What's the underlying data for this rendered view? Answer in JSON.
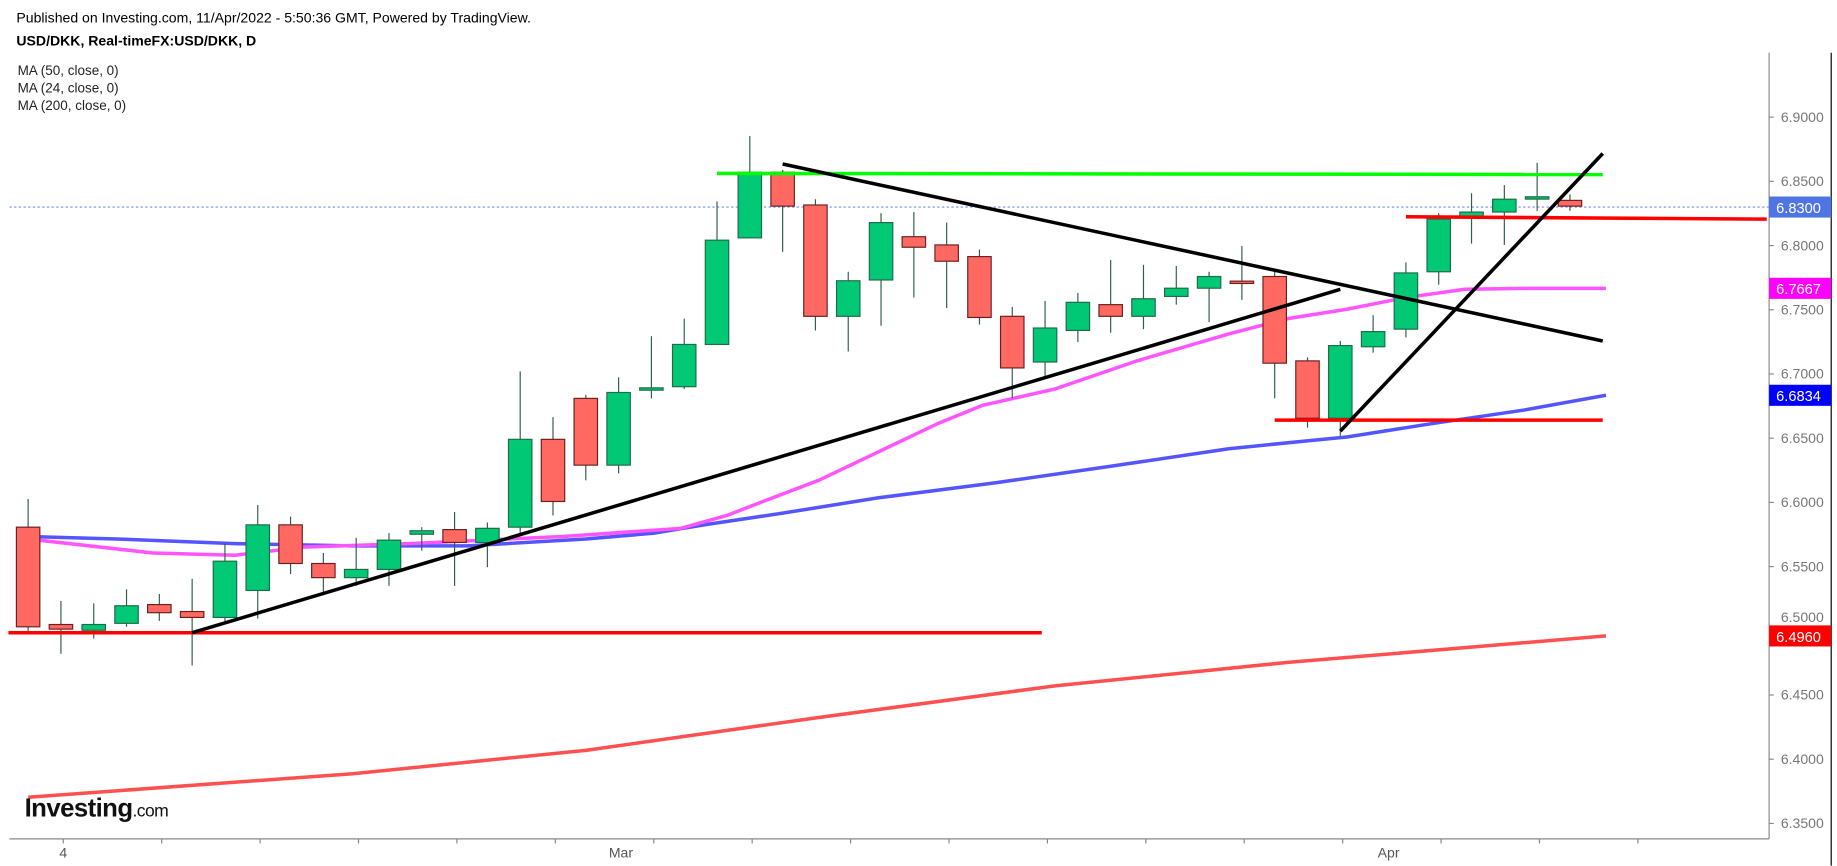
{
  "header": {
    "published": "Published on Investing.com, 11/Apr/2022 - 5:50:36 GMT, Powered by TradingView.",
    "title": "USD/DKK, Real-timeFX:USD/DKK, D"
  },
  "legend": [
    "MA (50, close, 0)",
    "MA (24, close, 0)",
    "MA (200, close, 0)"
  ],
  "logo": {
    "main": "Investing",
    "suffix": ".com"
  },
  "colors": {
    "up": "#00c875",
    "down": "#ff6961",
    "ma50": "#5555ff",
    "ma24": "#ff55ff",
    "ma200": "#ff5050",
    "last_price": "#4f74e3"
  },
  "chart_data": {
    "type": "candlestick",
    "symbol": "USD/DKK",
    "ylim": [
      6.33,
      6.95
    ],
    "y_ticks": [
      "6.9000",
      "6.8500",
      "6.8000",
      "6.7500",
      "6.7000",
      "6.6500",
      "6.6000",
      "6.5500",
      "6.5000",
      "6.4500",
      "6.4000",
      "6.3500"
    ],
    "x_labels": [
      {
        "index": 1,
        "label": "4"
      },
      {
        "index": 18,
        "label": "Mar"
      },
      {
        "index": 41.4,
        "label": "Apr"
      }
    ],
    "candles": [
      [
        6.5807,
        6.6026,
        6.4985,
        6.5031
      ],
      [
        6.5049,
        6.5232,
        6.4821,
        6.5013
      ],
      [
        6.5004,
        6.5214,
        6.494,
        6.5049
      ],
      [
        6.5058,
        6.5323,
        6.5031,
        6.5195
      ],
      [
        6.5204,
        6.5287,
        6.5077,
        6.5141
      ],
      [
        6.515,
        6.5405,
        6.473,
        6.5104
      ],
      [
        6.5104,
        6.5679,
        6.5058,
        6.5542
      ],
      [
        6.5314,
        6.598,
        6.5095,
        6.5825
      ],
      [
        6.5825,
        6.5889,
        6.5442,
        6.5524
      ],
      [
        6.5524,
        6.5606,
        6.5277,
        6.5414
      ],
      [
        6.5414,
        6.5724,
        6.535,
        6.5478
      ],
      [
        6.5478,
        6.5761,
        6.535,
        6.5706
      ],
      [
        6.5752,
        6.5807,
        6.5624,
        6.5779
      ],
      [
        6.5788,
        6.5925,
        6.535,
        6.5688
      ],
      [
        6.5688,
        6.5843,
        6.5496,
        6.5798
      ],
      [
        6.5807,
        6.702,
        6.5761,
        6.6491
      ],
      [
        6.6491,
        6.6664,
        6.5898,
        6.6007
      ],
      [
        6.681,
        6.6838,
        6.6172,
        6.629
      ],
      [
        6.629,
        6.6974,
        6.6226,
        6.6856
      ],
      [
        6.6875,
        6.7294,
        6.681,
        6.6892
      ],
      [
        6.6901,
        6.7431,
        6.6883,
        6.723
      ],
      [
        6.723,
        6.8343,
        6.723,
        6.8042
      ],
      [
        6.806,
        6.8854,
        6.806,
        6.8571
      ],
      [
        6.8571,
        6.8589,
        6.7951,
        6.8307
      ],
      [
        6.8316,
        6.8361,
        6.7339,
        6.7449
      ],
      [
        6.7449,
        6.7796,
        6.7175,
        6.7726
      ],
      [
        6.7732,
        6.8252,
        6.7376,
        6.8179
      ],
      [
        6.8069,
        6.8261,
        6.7595,
        6.7987
      ],
      [
        6.8005,
        6.8179,
        6.7513,
        6.7878
      ],
      [
        6.7914,
        6.7969,
        6.7385,
        6.744
      ],
      [
        6.7449,
        6.7522,
        6.681,
        6.7047
      ],
      [
        6.7093,
        6.7568,
        6.6974,
        6.7358
      ],
      [
        6.7339,
        6.7631,
        6.7248,
        6.7558
      ],
      [
        6.754,
        6.7887,
        6.7321,
        6.7449
      ],
      [
        6.7449,
        6.785,
        6.7349,
        6.7586
      ],
      [
        6.7604,
        6.7841,
        6.754,
        6.7668
      ],
      [
        6.7668,
        6.7796,
        6.7403,
        6.7759
      ],
      [
        6.7723,
        6.7996,
        6.7577,
        6.7714
      ],
      [
        6.7759,
        6.7814,
        6.681,
        6.7084
      ],
      [
        6.7102,
        6.713,
        6.6582,
        6.6655
      ],
      [
        6.6655,
        6.7257,
        6.6518,
        6.7221
      ],
      [
        6.7212,
        6.7458,
        6.7166,
        6.733
      ],
      [
        6.7349,
        6.7869,
        6.7285,
        6.7787
      ],
      [
        6.7796,
        6.8252,
        6.7695,
        6.8206
      ],
      [
        6.8215,
        6.8407,
        6.8015,
        6.8261
      ],
      [
        6.8261,
        6.8471,
        6.8005,
        6.8361
      ],
      [
        6.837,
        6.8644,
        6.827,
        6.838
      ],
      [
        6.8352,
        6.8398,
        6.827,
        6.8307
      ]
    ],
    "series": [
      {
        "name": "MA (50, close, 0)",
        "color": "#5555ff",
        "last": "6.6834",
        "badge": "#0000ff",
        "points": [
          [
            0,
            6.5734
          ],
          [
            2.7,
            6.5715
          ],
          [
            6.3,
            6.5679
          ],
          [
            9.9,
            6.5661
          ],
          [
            13.4,
            6.5661
          ],
          [
            17,
            6.5715
          ],
          [
            19.1,
            6.5761
          ],
          [
            20.6,
            6.5825
          ],
          [
            23,
            6.5916
          ],
          [
            25.9,
            6.6035
          ],
          [
            29.5,
            6.6153
          ],
          [
            33,
            6.6281
          ],
          [
            36.6,
            6.6418
          ],
          [
            39.1,
            6.6482
          ],
          [
            40.2,
            6.6509
          ],
          [
            42.7,
            6.661
          ],
          [
            45.6,
            6.6719
          ],
          [
            48.1,
            6.6834
          ]
        ]
      },
      {
        "name": "MA (24, close, 0)",
        "color": "#ff55ff",
        "last": "6.7667",
        "badge": "#ff00ff",
        "points": [
          [
            0,
            6.5715
          ],
          [
            3.8,
            6.5606
          ],
          [
            6.3,
            6.5588
          ],
          [
            8.4,
            6.5652
          ],
          [
            11.6,
            6.5679
          ],
          [
            16.3,
            6.5734
          ],
          [
            19.9,
            6.5798
          ],
          [
            21.3,
            6.5898
          ],
          [
            22.4,
            6.6007
          ],
          [
            24.1,
            6.6172
          ],
          [
            25.9,
            6.6391
          ],
          [
            27.7,
            6.661
          ],
          [
            29.1,
            6.6756
          ],
          [
            31.3,
            6.6883
          ],
          [
            33.8,
            6.7102
          ],
          [
            36.6,
            6.7312
          ],
          [
            38.4,
            6.7431
          ],
          [
            40.2,
            6.7504
          ],
          [
            42,
            6.7595
          ],
          [
            43.8,
            6.766
          ],
          [
            45.6,
            6.7667
          ],
          [
            48.1,
            6.7667
          ]
        ]
      },
      {
        "name": "MA (200, close, 0)",
        "color": "#ff5050",
        "last": "6.4960",
        "badge": "#ff0000",
        "points": [
          [
            0,
            6.3704
          ],
          [
            9.9,
            6.3887
          ],
          [
            17,
            6.4069
          ],
          [
            24.1,
            6.4325
          ],
          [
            31.3,
            6.4571
          ],
          [
            38.4,
            6.4754
          ],
          [
            48.1,
            6.496
          ]
        ]
      }
    ],
    "last_price": "6.8300",
    "drawings": [
      {
        "name": "support-line",
        "color": "#ff0000",
        "from": [
          -0.6,
          6.4985
        ],
        "to": [
          30.9,
          6.4985
        ]
      },
      {
        "name": "resistance-line-green",
        "color": "#00ff00",
        "from": [
          21,
          6.8562
        ],
        "to": [
          48,
          6.8553
        ]
      },
      {
        "name": "resistance-line-red",
        "color": "#ff0000",
        "from": [
          42,
          6.8224
        ],
        "to": [
          53,
          6.8206
        ]
      },
      {
        "name": "support-line-lower",
        "color": "#ff0000",
        "from": [
          38,
          6.6641
        ],
        "to": [
          48,
          6.6641
        ]
      },
      {
        "name": "rising-trendline",
        "color": "#000000",
        "from": [
          5,
          6.4985
        ],
        "to": [
          40,
          6.7659
        ]
      },
      {
        "name": "falling-trendline",
        "color": "#000000",
        "from": [
          23,
          6.8635
        ],
        "to": [
          48,
          6.7257
        ]
      },
      {
        "name": "steep-trendline",
        "color": "#000000",
        "from": [
          40,
          6.6555
        ],
        "to": [
          48,
          6.8717
        ]
      }
    ]
  }
}
